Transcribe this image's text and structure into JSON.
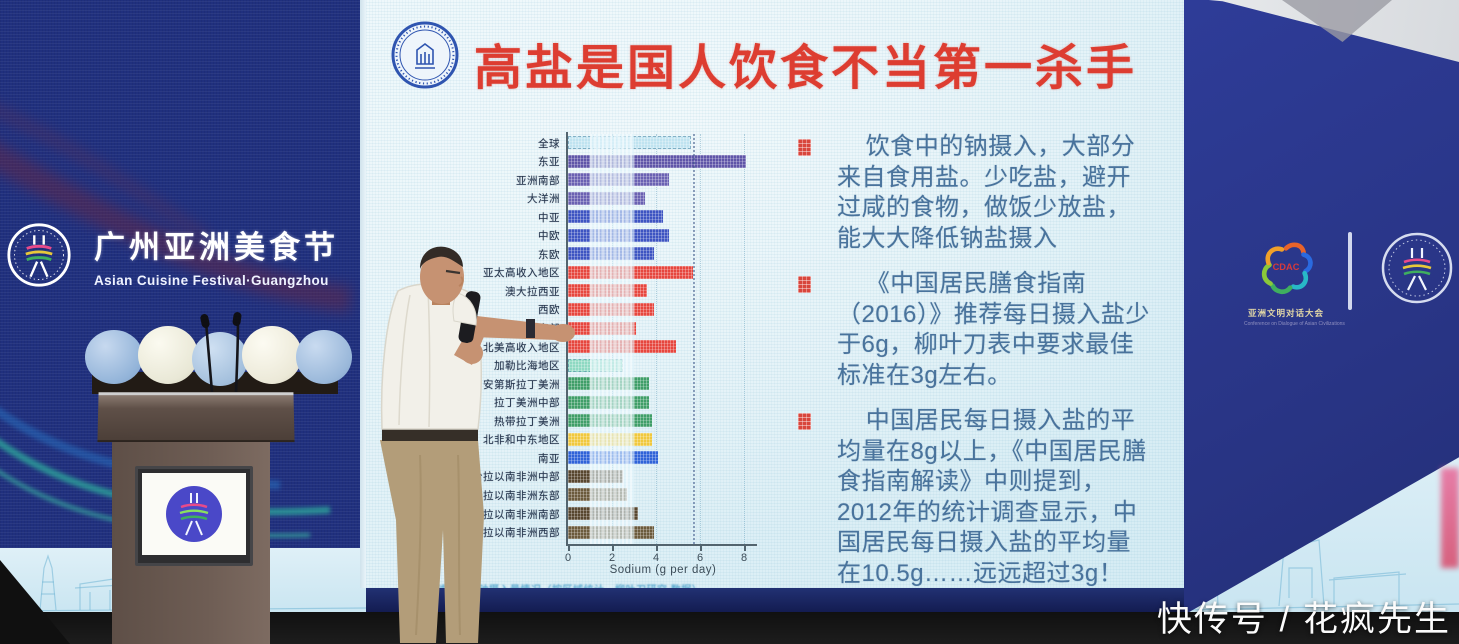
{
  "slide": {
    "title": "高盐是国人饮食不当第一杀手",
    "bullets": [
      "饮食中的钠摄入，大部分来自食用盐。少吃盐，避开过咸的食物，做饭少放盐，能大大降低钠盐摄入",
      "《中国居民膳食指南（2016）》推荐每日摄入盐少于6g，柳叶刀表中要求最佳标准在3g左右。",
      "中国居民每日摄入盐的平均量在8g以上，《中国居民膳食指南解读》中则提到，2012年的统计调查显示，中国居民每日摄入盐的平均量在10.5g……远远超过3g！"
    ],
    "chart_caption": "全球各区域钠摄入量情况（按区域统计，柳叶刀研究 数据）",
    "chart_data": {
      "type": "bar",
      "orientation": "horizontal",
      "xlabel": "Sodium (g per day)",
      "xlim": [
        0,
        8.5
      ],
      "xticks": [
        0,
        2,
        4,
        6,
        8
      ],
      "optimal_band": [
        1.0,
        3.0
      ],
      "reference_line_x": 5.7,
      "grid": true,
      "rows": [
        {
          "label": "全球",
          "value": 5.6,
          "color": "#bfe3f0",
          "light": true
        },
        {
          "label": "东亚",
          "value": 8.1,
          "color": "#5f55a8"
        },
        {
          "label": "亚洲南部",
          "value": 4.6,
          "color": "#6a61b2"
        },
        {
          "label": "大洋洲",
          "value": 3.5,
          "color": "#6a61b2"
        },
        {
          "label": "中亚",
          "value": 4.3,
          "color": "#3d54c2"
        },
        {
          "label": "中欧",
          "value": 4.6,
          "color": "#3d54c2"
        },
        {
          "label": "东欧",
          "value": 3.9,
          "color": "#3d54c2"
        },
        {
          "label": "亚太高收入地区",
          "value": 5.7,
          "color": "#e6463e"
        },
        {
          "label": "澳大拉西亚",
          "value": 3.6,
          "color": "#e6463e"
        },
        {
          "label": "西欧",
          "value": 3.9,
          "color": "#e6463e"
        },
        {
          "label": "拉丁美洲南部",
          "value": 3.1,
          "color": "#e6463e"
        },
        {
          "label": "北美高收入地区",
          "value": 4.9,
          "color": "#e6463e"
        },
        {
          "label": "加勒比海地区",
          "value": 2.5,
          "color": "#8ed9c2",
          "light": true
        },
        {
          "label": "安第斯拉丁美洲",
          "value": 3.7,
          "color": "#3f9e68"
        },
        {
          "label": "拉丁美洲中部",
          "value": 3.7,
          "color": "#3f9e68"
        },
        {
          "label": "热带拉丁美洲",
          "value": 3.8,
          "color": "#3f9e68"
        },
        {
          "label": "北非和中东地区",
          "value": 3.8,
          "color": "#f0c83e"
        },
        {
          "label": "南亚",
          "value": 4.1,
          "color": "#2f63d8"
        },
        {
          "label": "撒哈拉以南非洲中部",
          "value": 2.5,
          "color": "#57462f"
        },
        {
          "label": "撒哈拉以南非洲东部",
          "value": 2.7,
          "color": "#6b5a3c"
        },
        {
          "label": "撒哈拉以南非洲南部",
          "value": 3.2,
          "color": "#57462f"
        },
        {
          "label": "撒哈拉以南非洲西部",
          "value": 3.9,
          "color": "#6b5a3c"
        }
      ]
    }
  },
  "left_wall": {
    "festival_title_cn": "广州亚洲美食节",
    "festival_title_en": "Asian Cuisine Festival·Guangzhou"
  },
  "right_wall": {
    "cdac_acronym": "CDAC",
    "cdac_subtitle_cn": "亚洲文明对话大会",
    "cdac_subtitle_en": "Conference on Dialogue of Asian Civilizations"
  },
  "watermark": "快传号 / 花疯先生",
  "colors": {
    "title_red": "#dd3d31",
    "wall_blue": "#2a3a9e",
    "slide_bg": "#e2f2f7",
    "bullet_text": "#49739c",
    "watermark_white": "#fbfbfb"
  }
}
